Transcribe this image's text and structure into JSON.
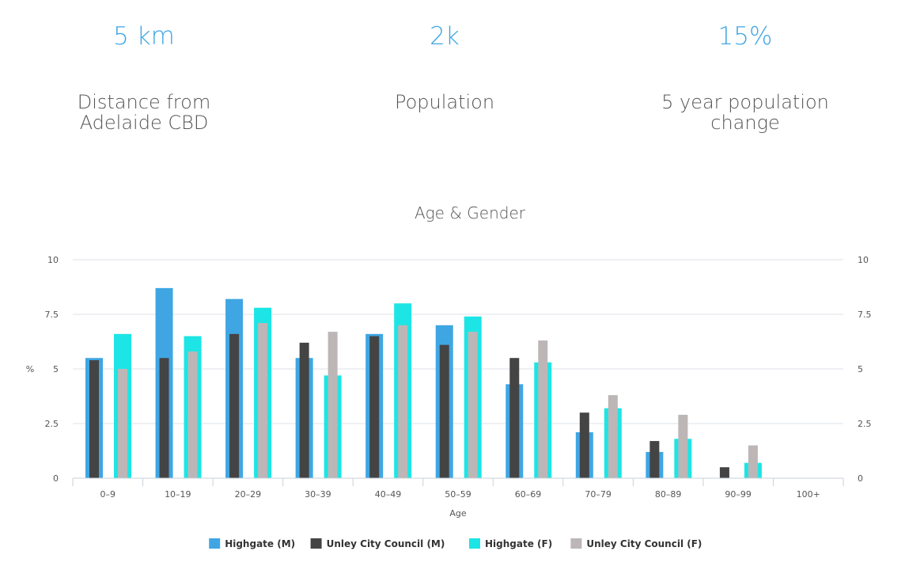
{
  "stats": [
    {
      "value": "5 km",
      "label": "Distance from Adelaide CBD"
    },
    {
      "value": "2k",
      "label": "Population"
    },
    {
      "value": "15%",
      "label": "5 year population change"
    }
  ],
  "colors": {
    "accent": "#3fa6e3",
    "highgate_m": "#3fa6e3",
    "unley_m": "#444444",
    "highgate_f": "#1de5e5",
    "unley_f": "#bdb6b6"
  },
  "chart_data": {
    "type": "bar",
    "title": "Age & Gender",
    "xlabel": "Age",
    "ylabel": "%",
    "ylim": [
      0,
      10
    ],
    "yticks": [
      0,
      2.5,
      5,
      7.5,
      10
    ],
    "ytick_labels": [
      "0",
      "2.5",
      "5",
      "7.5",
      "10"
    ],
    "categories": [
      "0–9",
      "10–19",
      "20–29",
      "30–39",
      "40–49",
      "50–59",
      "60–69",
      "70–79",
      "80–89",
      "90–99",
      "100+"
    ],
    "series": [
      {
        "name": "Highgate (M)",
        "color": "#3fa6e3",
        "values": [
          5.5,
          8.7,
          8.2,
          5.5,
          6.6,
          7.0,
          4.3,
          2.1,
          1.2,
          0,
          0
        ]
      },
      {
        "name": "Unley City Council (M)",
        "color": "#444444",
        "values": [
          5.4,
          5.5,
          6.6,
          6.2,
          6.5,
          6.1,
          5.5,
          3.0,
          1.7,
          0.5,
          0
        ]
      },
      {
        "name": "Highgate (F)",
        "color": "#1de5e5",
        "values": [
          6.6,
          6.5,
          7.8,
          4.7,
          8.0,
          7.4,
          5.3,
          3.2,
          1.8,
          0.7,
          0
        ]
      },
      {
        "name": "Unley City Council (F)",
        "color": "#bdb6b6",
        "values": [
          5.0,
          5.8,
          7.1,
          6.7,
          7.0,
          6.7,
          6.3,
          3.8,
          2.9,
          1.5,
          0
        ]
      }
    ],
    "legend": "bottom-center"
  }
}
